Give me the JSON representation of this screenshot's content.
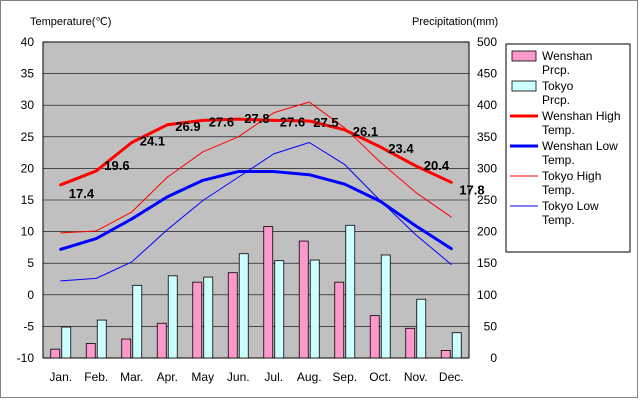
{
  "chart_data": {
    "type": "bar+line",
    "left_axis_title": "Temperature(℃)",
    "right_axis_title": "Precipitation(mm)",
    "left_ylim": [
      -10,
      40
    ],
    "left_ticks": [
      "40",
      "35",
      "30",
      "25",
      "20",
      "15",
      "10",
      "5",
      "0",
      "-5",
      "-10"
    ],
    "right_ylim": [
      0,
      500
    ],
    "right_ticks": [
      "500",
      "450",
      "400",
      "350",
      "300",
      "250",
      "200",
      "150",
      "100",
      "50",
      "0"
    ],
    "categories": [
      "Jan.",
      "Feb.",
      "Mar.",
      "Apr.",
      "May",
      "Jun.",
      "Jul.",
      "Aug.",
      "Sep.",
      "Oct.",
      "Nov.",
      "Dec."
    ],
    "grid": true,
    "legend_position": "right",
    "bars": [
      {
        "name": "Wenshan Prcp.",
        "color": "#ff99cc",
        "values": [
          14,
          23,
          30,
          55,
          120,
          135,
          208,
          185,
          120,
          67,
          47,
          12
        ]
      },
      {
        "name": "Tokyo Prcp.",
        "color": "#ccffff",
        "values": [
          49,
          60,
          115,
          130,
          128,
          165,
          154,
          155,
          210,
          163,
          93,
          40
        ]
      }
    ],
    "lines": [
      {
        "name": "Wenshan High Temp.",
        "color": "#ff0000",
        "width": "bold",
        "values": [
          17.4,
          19.6,
          24.1,
          26.9,
          27.6,
          27.8,
          27.6,
          27.5,
          26.1,
          23.4,
          20.4,
          17.8
        ],
        "labels": [
          "17.4",
          "19.6",
          "24.1",
          "26.9",
          "27.6",
          "27.8",
          "27.6",
          "27.5",
          "26.1",
          "23.4",
          "20.4",
          "17.8"
        ]
      },
      {
        "name": "Wenshan Low Temp.",
        "color": "#0000ff",
        "width": "bold",
        "values": [
          7.2,
          8.9,
          12.0,
          15.5,
          18.1,
          19.5,
          19.5,
          19.0,
          17.5,
          14.8,
          10.9,
          7.3
        ]
      },
      {
        "name": "Tokyo High Temp.",
        "color": "#ff0000",
        "width": "thin",
        "values": [
          9.8,
          10.1,
          13.1,
          18.6,
          22.6,
          25.0,
          28.8,
          30.5,
          26.4,
          21.0,
          16.2,
          12.3
        ]
      },
      {
        "name": "Tokyo Low Temp.",
        "color": "#0000ff",
        "width": "thin",
        "values": [
          2.2,
          2.6,
          5.2,
          10.3,
          14.9,
          18.6,
          22.3,
          24.1,
          20.6,
          14.9,
          9.5,
          4.8
        ]
      }
    ]
  }
}
